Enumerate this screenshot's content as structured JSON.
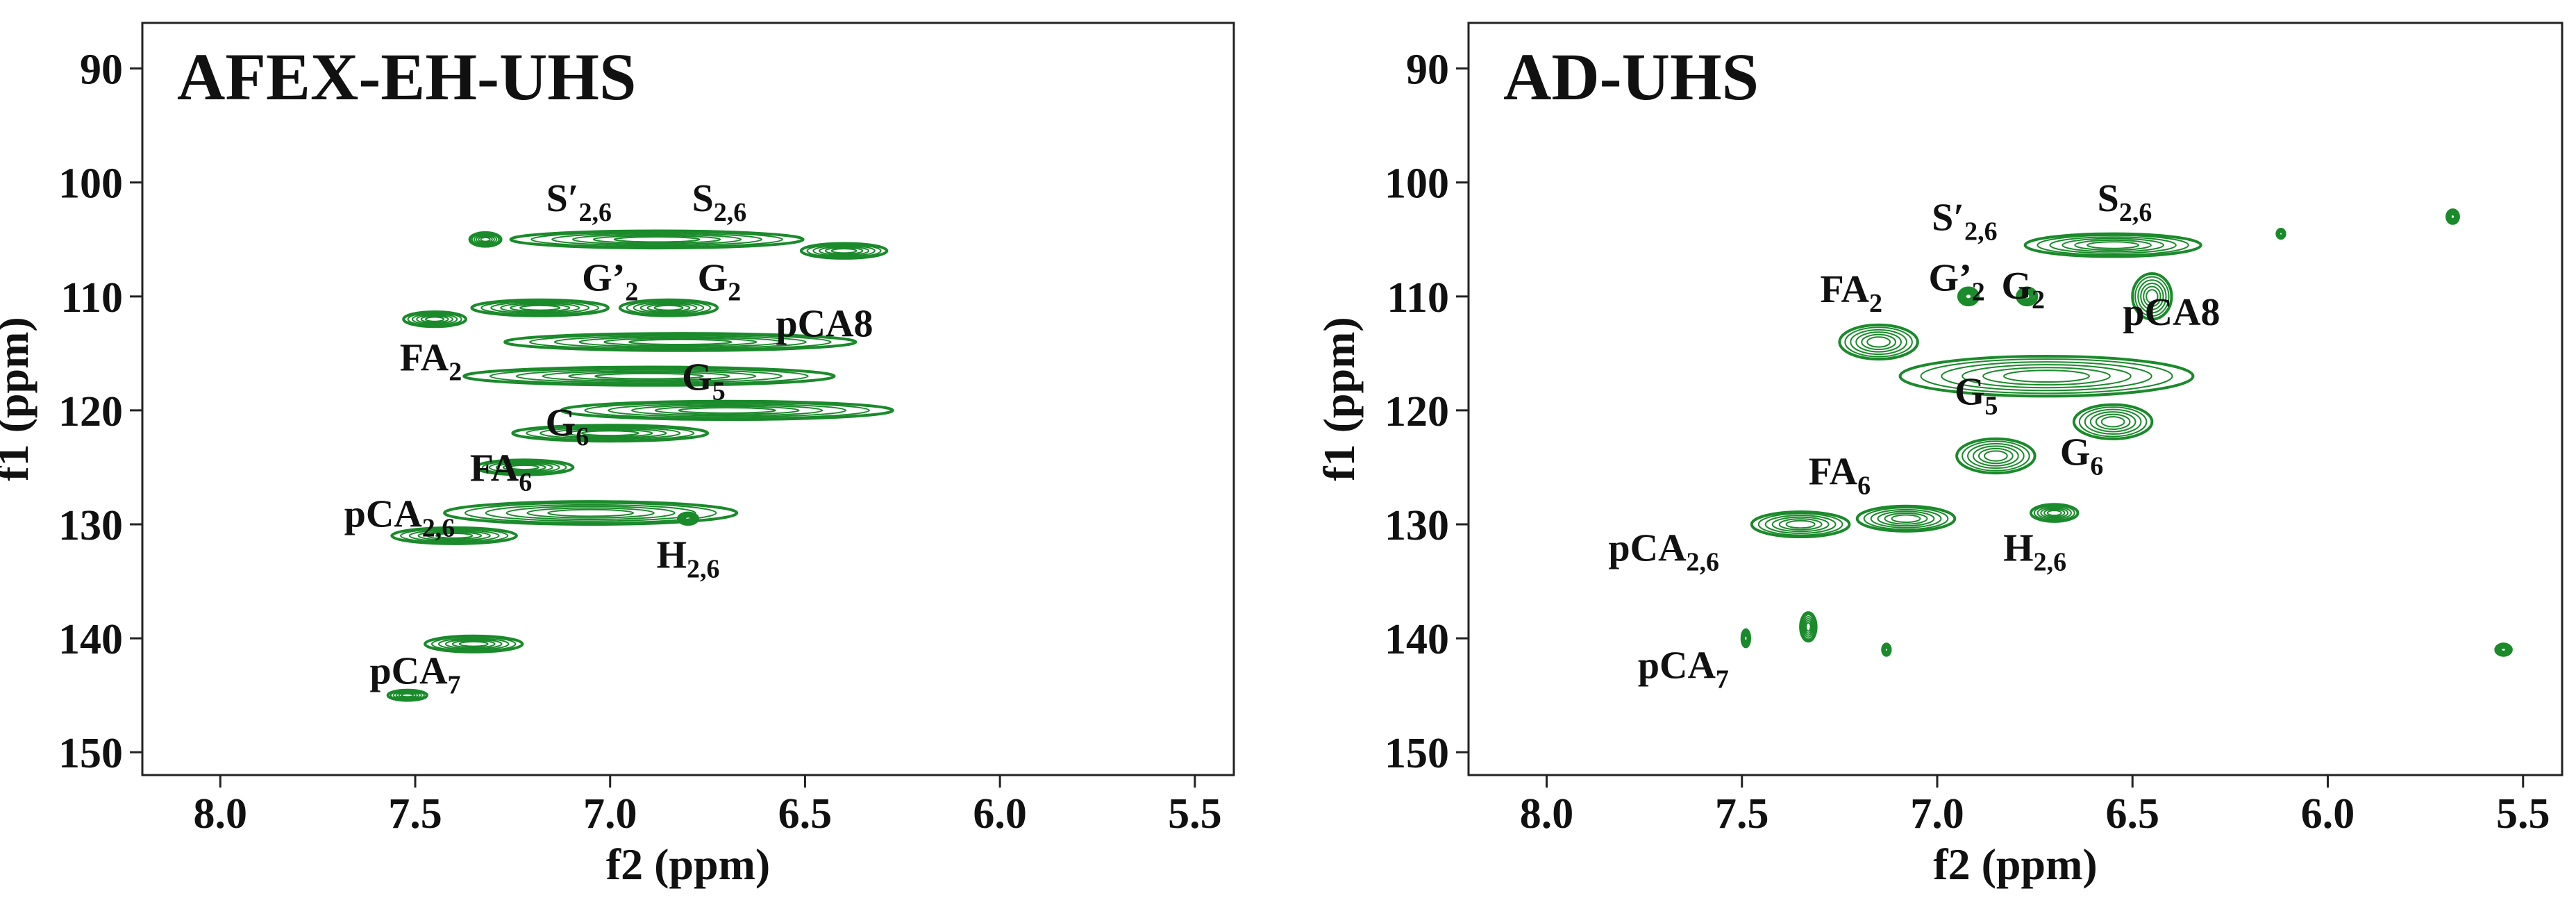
{
  "chart_data": [
    {
      "type": "scatter",
      "title": "AFEX-EH-UHS",
      "xlabel": "f2 (ppm)",
      "ylabel": "f1 (ppm)",
      "xlim": [
        8.2,
        5.4
      ],
      "ylim": [
        86,
        152
      ],
      "x_ticks": [
        "8.0",
        "7.5",
        "7.0",
        "6.5",
        "6.0",
        "5.5"
      ],
      "y_ticks": [
        "90",
        "100",
        "110",
        "120",
        "130",
        "140",
        "150"
      ],
      "contour_color": "#1a8a2a",
      "peaks": [
        {
          "x": 7.32,
          "y": 105,
          "w": 0.08,
          "h": 1.2
        },
        {
          "x": 6.88,
          "y": 105,
          "w": 0.75,
          "h": 1.5
        },
        {
          "x": 6.4,
          "y": 106,
          "w": 0.22,
          "h": 1.3
        },
        {
          "x": 7.45,
          "y": 112,
          "w": 0.16,
          "h": 1.3
        },
        {
          "x": 7.18,
          "y": 111,
          "w": 0.35,
          "h": 1.4
        },
        {
          "x": 6.85,
          "y": 111,
          "w": 0.25,
          "h": 1.4
        },
        {
          "x": 6.82,
          "y": 114,
          "w": 0.9,
          "h": 1.5
        },
        {
          "x": 6.9,
          "y": 117,
          "w": 0.95,
          "h": 1.6
        },
        {
          "x": 6.7,
          "y": 120,
          "w": 0.85,
          "h": 1.6
        },
        {
          "x": 7.0,
          "y": 122,
          "w": 0.5,
          "h": 1.4
        },
        {
          "x": 7.22,
          "y": 125,
          "w": 0.25,
          "h": 1.3
        },
        {
          "x": 7.05,
          "y": 129,
          "w": 0.75,
          "h": 2.0
        },
        {
          "x": 7.4,
          "y": 131,
          "w": 0.32,
          "h": 1.4
        },
        {
          "x": 6.8,
          "y": 129.5,
          "w": 0.05,
          "h": 1.0
        },
        {
          "x": 7.35,
          "y": 140.5,
          "w": 0.25,
          "h": 1.4
        },
        {
          "x": 7.52,
          "y": 145,
          "w": 0.1,
          "h": 0.9
        }
      ],
      "peak_labels": [
        {
          "x": 7.08,
          "y": 102.5,
          "main": "S′",
          "sub": "2,6"
        },
        {
          "x": 6.72,
          "y": 102.5,
          "main": "S",
          "sub": "2,6"
        },
        {
          "x": 7.0,
          "y": 109.5,
          "main": "G’",
          "sub": "2"
        },
        {
          "x": 6.72,
          "y": 109.5,
          "main": "G",
          "sub": "2"
        },
        {
          "x": 6.45,
          "y": 113.5,
          "main": "pCA8",
          "sub": ""
        },
        {
          "x": 7.46,
          "y": 116.5,
          "main": "FA",
          "sub": "2"
        },
        {
          "x": 6.76,
          "y": 118.2,
          "main": "G",
          "sub": "5"
        },
        {
          "x": 7.11,
          "y": 122.2,
          "main": "G",
          "sub": "6"
        },
        {
          "x": 7.28,
          "y": 126.2,
          "main": "FA",
          "sub": "6"
        },
        {
          "x": 7.54,
          "y": 130.2,
          "main": "pCA",
          "sub": "2,6"
        },
        {
          "x": 6.8,
          "y": 133.8,
          "main": "H",
          "sub": "2,6"
        },
        {
          "x": 7.5,
          "y": 144.0,
          "main": "pCA",
          "sub": "7"
        }
      ]
    },
    {
      "type": "scatter",
      "title": "AD-UHS",
      "xlabel": "f2 (ppm)",
      "ylabel": "f1 (ppm)",
      "xlim": [
        8.2,
        5.4
      ],
      "ylim": [
        86,
        152
      ],
      "x_ticks": [
        "8.0",
        "7.5",
        "7.0",
        "6.5",
        "6.0",
        "5.5"
      ],
      "y_ticks": [
        "90",
        "100",
        "110",
        "120",
        "130",
        "140",
        "150"
      ],
      "contour_color": "#1a8a2a",
      "peaks": [
        {
          "x": 6.55,
          "y": 105.5,
          "w": 0.45,
          "h": 2.0
        },
        {
          "x": 6.45,
          "y": 110,
          "w": 0.1,
          "h": 4.0
        },
        {
          "x": 6.92,
          "y": 110,
          "w": 0.05,
          "h": 1.5
        },
        {
          "x": 6.77,
          "y": 110,
          "w": 0.05,
          "h": 1.5
        },
        {
          "x": 7.15,
          "y": 114,
          "w": 0.2,
          "h": 3.0
        },
        {
          "x": 6.72,
          "y": 117,
          "w": 0.75,
          "h": 3.5
        },
        {
          "x": 6.55,
          "y": 121,
          "w": 0.2,
          "h": 3.0
        },
        {
          "x": 6.85,
          "y": 124,
          "w": 0.2,
          "h": 3.0
        },
        {
          "x": 7.35,
          "y": 130,
          "w": 0.25,
          "h": 2.2
        },
        {
          "x": 7.08,
          "y": 129.5,
          "w": 0.25,
          "h": 2.2
        },
        {
          "x": 6.7,
          "y": 129,
          "w": 0.12,
          "h": 1.5
        },
        {
          "x": 7.33,
          "y": 139,
          "w": 0.04,
          "h": 2.5
        },
        {
          "x": 7.49,
          "y": 140,
          "w": 0.02,
          "h": 1.5
        },
        {
          "x": 7.13,
          "y": 141,
          "w": 0.02,
          "h": 1.0
        },
        {
          "x": 5.55,
          "y": 141,
          "w": 0.04,
          "h": 1.0
        },
        {
          "x": 5.68,
          "y": 103,
          "w": 0.03,
          "h": 1.2
        },
        {
          "x": 6.12,
          "y": 104.5,
          "w": 0.02,
          "h": 0.8
        }
      ],
      "peak_labels": [
        {
          "x": 6.93,
          "y": 104.2,
          "main": "S′",
          "sub": "2,6"
        },
        {
          "x": 6.52,
          "y": 102.5,
          "main": "S",
          "sub": "2,6"
        },
        {
          "x": 7.22,
          "y": 110.5,
          "main": "FA",
          "sub": "2"
        },
        {
          "x": 6.95,
          "y": 109.5,
          "main": "G’",
          "sub": "2"
        },
        {
          "x": 6.78,
          "y": 110.2,
          "main": "G",
          "sub": "2"
        },
        {
          "x": 6.4,
          "y": 112.5,
          "main": "pCA8",
          "sub": ""
        },
        {
          "x": 6.9,
          "y": 119.5,
          "main": "G",
          "sub": "5"
        },
        {
          "x": 6.63,
          "y": 124.8,
          "main": "G",
          "sub": "6"
        },
        {
          "x": 7.25,
          "y": 126.5,
          "main": "FA",
          "sub": "6"
        },
        {
          "x": 7.7,
          "y": 133.2,
          "main": "pCA",
          "sub": "2,6"
        },
        {
          "x": 6.75,
          "y": 133.2,
          "main": "H",
          "sub": "2,6"
        },
        {
          "x": 7.65,
          "y": 143.5,
          "main": "pCA",
          "sub": "7"
        }
      ]
    }
  ]
}
